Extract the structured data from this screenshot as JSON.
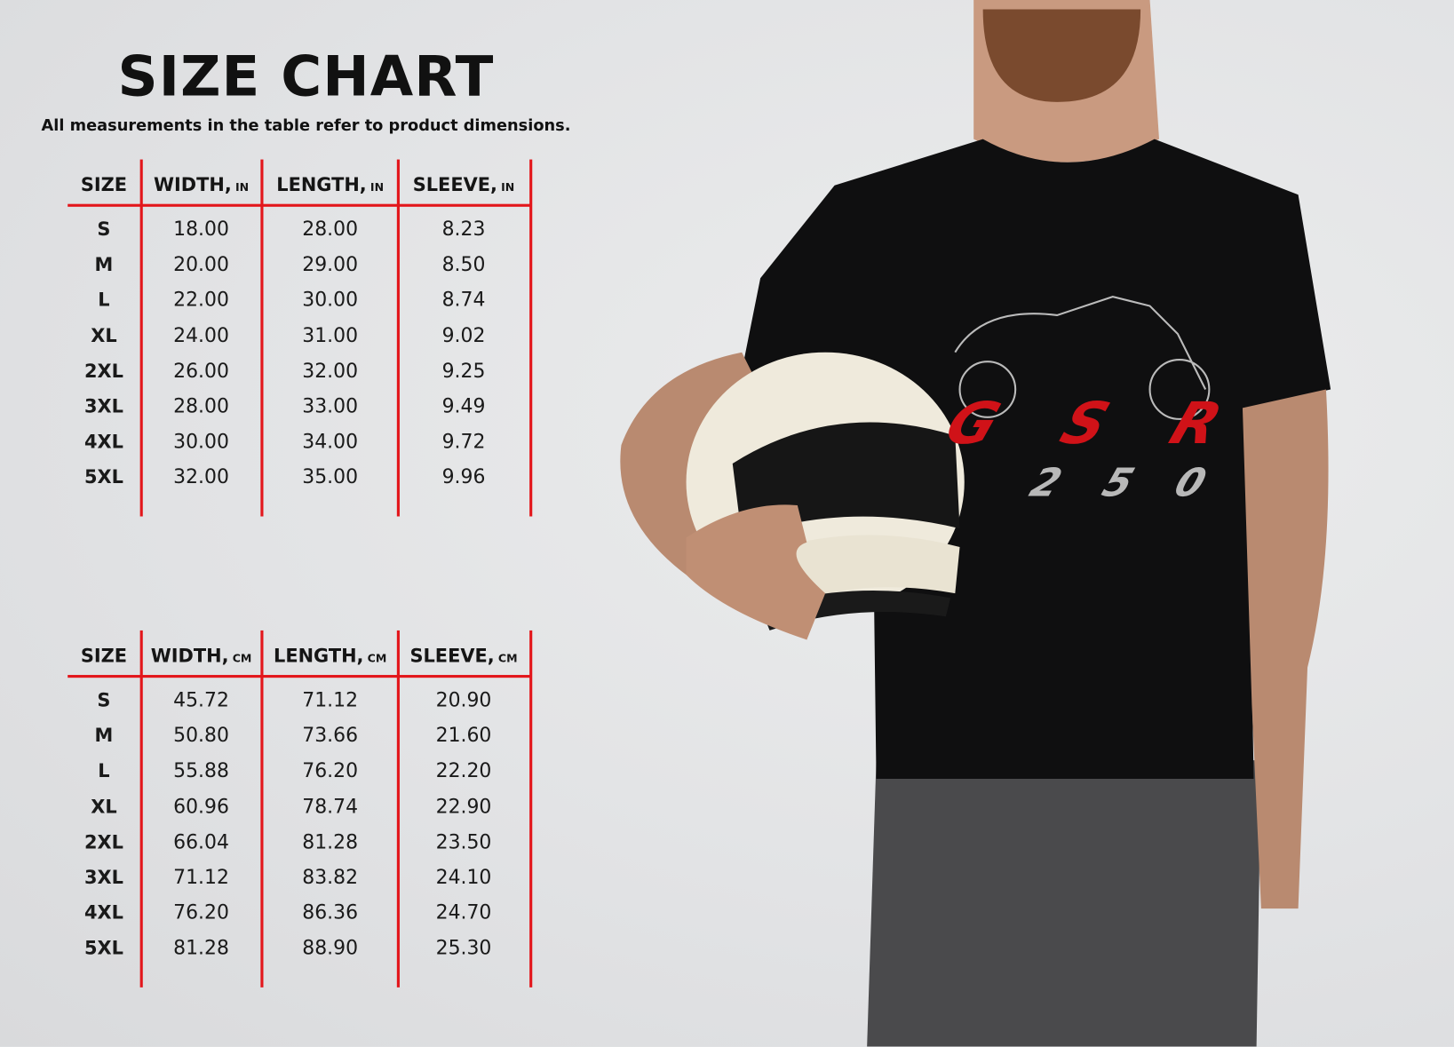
{
  "header": {
    "title": "SIZE CHART",
    "subtitle": "All measurements in the table refer to product dimensions."
  },
  "accent_color": "#e3161b",
  "tables": [
    {
      "columns": [
        {
          "label": "SIZE",
          "unit": ""
        },
        {
          "label": "WIDTH,",
          "unit": "IN"
        },
        {
          "label": "LENGTH,",
          "unit": "IN"
        },
        {
          "label": "SLEEVE,",
          "unit": "IN"
        }
      ],
      "rows": [
        [
          "S",
          "18.00",
          "28.00",
          "8.23"
        ],
        [
          "M",
          "20.00",
          "29.00",
          "8.50"
        ],
        [
          "L",
          "22.00",
          "30.00",
          "8.74"
        ],
        [
          "XL",
          "24.00",
          "31.00",
          "9.02"
        ],
        [
          "2XL",
          "26.00",
          "32.00",
          "9.25"
        ],
        [
          "3XL",
          "28.00",
          "33.00",
          "9.49"
        ],
        [
          "4XL",
          "30.00",
          "34.00",
          "9.72"
        ],
        [
          "5XL",
          "32.00",
          "35.00",
          "9.96"
        ]
      ]
    },
    {
      "columns": [
        {
          "label": "SIZE",
          "unit": ""
        },
        {
          "label": "WIDTH,",
          "unit": "CM"
        },
        {
          "label": "LENGTH,",
          "unit": "CM"
        },
        {
          "label": "SLEEVE,",
          "unit": "CM"
        }
      ],
      "rows": [
        [
          "S",
          "45.72",
          "71.12",
          "20.90"
        ],
        [
          "M",
          "50.80",
          "73.66",
          "21.60"
        ],
        [
          "L",
          "55.88",
          "76.20",
          "22.20"
        ],
        [
          "XL",
          "60.96",
          "78.74",
          "22.90"
        ],
        [
          "2XL",
          "66.04",
          "81.28",
          "23.50"
        ],
        [
          "3XL",
          "71.12",
          "83.82",
          "24.10"
        ],
        [
          "4XL",
          "76.20",
          "86.36",
          "24.70"
        ],
        [
          "5XL",
          "81.28",
          "88.90",
          "25.30"
        ]
      ]
    }
  ],
  "product_image": {
    "logo_text": "GSR",
    "logo_number": "250",
    "shirt_color": "#0d0d0d",
    "logo_red": "#d01218",
    "logo_silver": "#b8b8b8"
  }
}
